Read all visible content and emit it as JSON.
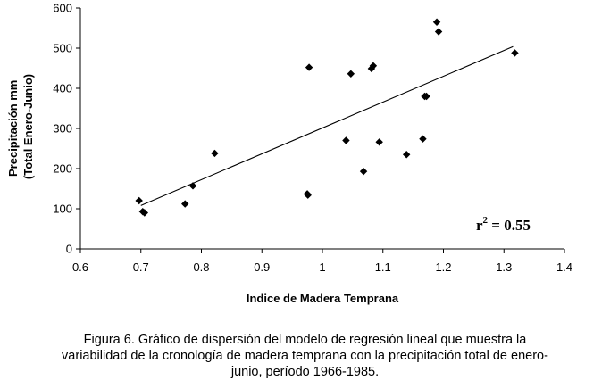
{
  "chart_data": {
    "type": "scatter",
    "xlabel": "Indice de Madera Temprana",
    "ylabel_lines": [
      "Precipitación mm",
      "(Total Enero-Junio)"
    ],
    "xlim": [
      0.6,
      1.4
    ],
    "ylim": [
      0,
      600
    ],
    "x_ticks": [
      "0.6",
      "0.7",
      "0.8",
      "0.9",
      "1",
      "1.1",
      "1.2",
      "1.3",
      "1.4"
    ],
    "y_ticks": [
      "0",
      "100",
      "200",
      "300",
      "400",
      "500",
      "600"
    ],
    "grid": false,
    "series": [
      {
        "points": [
          {
            "x": 0.697,
            "y": 120
          },
          {
            "x": 0.703,
            "y": 93
          },
          {
            "x": 0.706,
            "y": 90
          },
          {
            "x": 0.773,
            "y": 112
          },
          {
            "x": 0.786,
            "y": 157
          },
          {
            "x": 0.822,
            "y": 238
          },
          {
            "x": 0.975,
            "y": 137
          },
          {
            "x": 0.976,
            "y": 134
          },
          {
            "x": 0.978,
            "y": 452
          },
          {
            "x": 1.039,
            "y": 270
          },
          {
            "x": 1.047,
            "y": 436
          },
          {
            "x": 1.068,
            "y": 193
          },
          {
            "x": 1.081,
            "y": 449
          },
          {
            "x": 1.084,
            "y": 456
          },
          {
            "x": 1.094,
            "y": 266
          },
          {
            "x": 1.139,
            "y": 235
          },
          {
            "x": 1.166,
            "y": 274
          },
          {
            "x": 1.169,
            "y": 380
          },
          {
            "x": 1.172,
            "y": 380
          },
          {
            "x": 1.189,
            "y": 565
          },
          {
            "x": 1.192,
            "y": 541
          },
          {
            "x": 1.318,
            "y": 488
          }
        ]
      }
    ],
    "trendline": {
      "x": [
        0.7,
        1.315
      ],
      "y": [
        108,
        504
      ]
    },
    "annotation": {
      "base": "r",
      "exp": "2",
      "rest": " = 0.55"
    }
  },
  "caption_lines": [
    "Figura 6. Gráfico de dispersión del modelo de regresión lineal que muestra la",
    "variabilidad de la cronología de madera temprana con la precipitación total de enero-",
    "junio, período 1966-1985."
  ]
}
